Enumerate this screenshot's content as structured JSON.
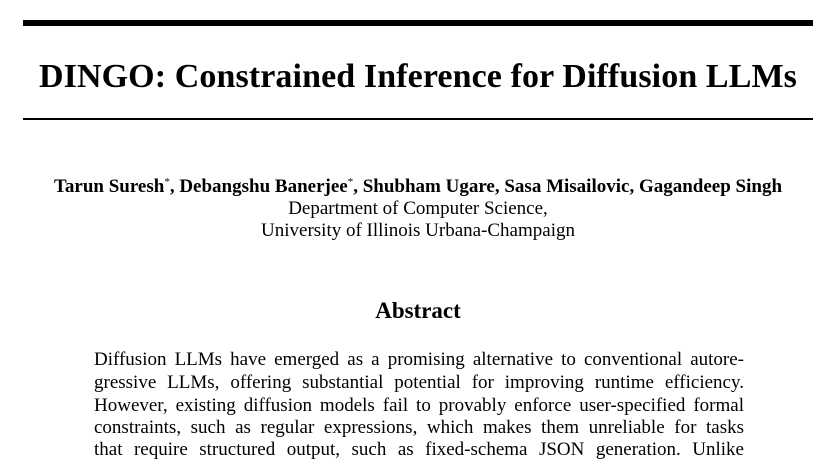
{
  "paper": {
    "title": "DINGO: Constrained Inference for Diffusion LLMs",
    "authors": [
      {
        "name": "Tarun Suresh",
        "mark": "*"
      },
      {
        "name": "Debangshu Banerjee",
        "mark": "*"
      },
      {
        "name": "Shubham Ugare",
        "mark": ""
      },
      {
        "name": "Sasa Misailovic",
        "mark": ""
      },
      {
        "name": "Gagandeep Singh",
        "mark": ""
      }
    ],
    "affiliation_line1": "Department of Computer Science,",
    "affiliation_line2": "University of Illinois Urbana-Champaign",
    "abstract_heading": "Abstract",
    "abstract_lines": [
      "Diffusion LLMs have emerged as a promising alternative to conventional autore-",
      "gressive LLMs, offering substantial potential for improving runtime efficiency.",
      "However, existing diffusion models fail to provably enforce user-specified formal",
      "constraints, such as regular expressions, which makes them unreliable for tasks",
      "that require structured output, such as fixed-schema JSON generation. Unlike"
    ]
  }
}
